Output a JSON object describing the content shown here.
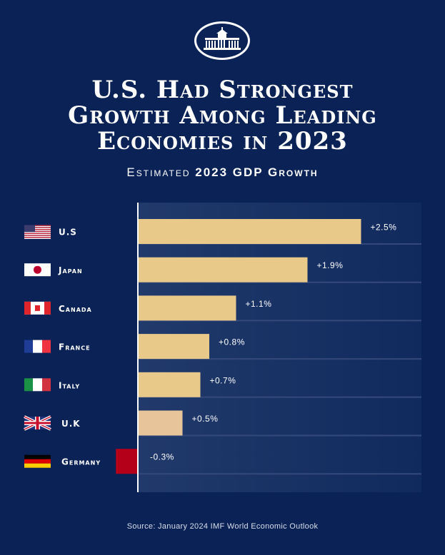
{
  "title": [
    "U.S. Had Strongest",
    "Growth Among Leading",
    "Economies in 2023"
  ],
  "subtitle": {
    "prefix": "Estimated",
    "bold": "2023 GDP Growth"
  },
  "source": "Source: January 2024 IMF World Economic Outlook",
  "chart_data": {
    "type": "bar",
    "orientation": "horizontal",
    "categories": [
      "U.S",
      "Japan",
      "Canada",
      "France",
      "Italy",
      "U.K",
      "Germany"
    ],
    "values": [
      2.5,
      1.9,
      1.1,
      0.8,
      0.7,
      0.5,
      -0.3
    ],
    "data_labels": [
      "+2.5%",
      "+1.9%",
      "+1.1%",
      "+0.8%",
      "+0.7%",
      "+0.5%",
      "-0.3%"
    ],
    "flags": [
      "us-flag",
      "japan-flag",
      "canada-flag",
      "france-flag",
      "italy-flag",
      "uk-flag",
      "germany-flag"
    ],
    "colors": {
      "positive": "#e8c98a",
      "uk": "#e8c49a",
      "negative": "#b5001a",
      "background": "#0b2256"
    },
    "grid": false,
    "legend": "none"
  }
}
